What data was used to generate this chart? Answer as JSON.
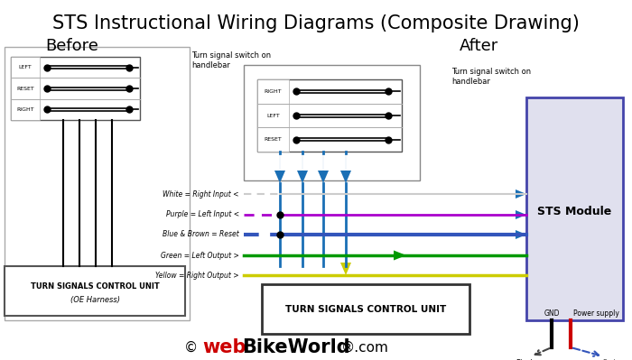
{
  "title": "STS Instructional Wiring Diagrams (Composite Drawing)",
  "before_label": "Before",
  "after_label": "After",
  "bg_color": "#ffffff",
  "switch_before_labels": [
    "LEFT",
    "RESET",
    "RIGHT"
  ],
  "switch_after_labels": [
    "RIGHT",
    "LEFT",
    "RESET"
  ],
  "wire_labels": [
    "White = Right Input <",
    "Purple = Left Input <",
    "Blue & Brown = Reset",
    "Green = Left Output >",
    "Yellow = Right Output >"
  ],
  "wire_colors": [
    "#cccccc",
    "#aa00cc",
    "#3355bb",
    "#009900",
    "#cccc00"
  ],
  "wire_lwidths": [
    1.5,
    2.0,
    3.0,
    2.5,
    2.5
  ],
  "handlebar_before": "Turn signal switch on\nhandlebar",
  "handlebar_after": "Turn signal switch on\nhandlebar",
  "bottom_unit_before_line1": "TURN SIGNALS CONTROL UNIT",
  "bottom_unit_before_line2": "(OE Harness)",
  "bottom_unit_after": "TURN SIGNALS CONTROL UNIT",
  "sts_label": "STS Module",
  "gnd_label": "GND",
  "power_label": "Power supply",
  "black_label": "Black",
  "red_label": "Red",
  "blue_arrow_color": "#1a6fb5",
  "green_arrow_color": "#009900",
  "yellow_arrow_color": "#cccc00",
  "sts_box_face": "#e0e0ee",
  "sts_box_edge": "#4444aa"
}
